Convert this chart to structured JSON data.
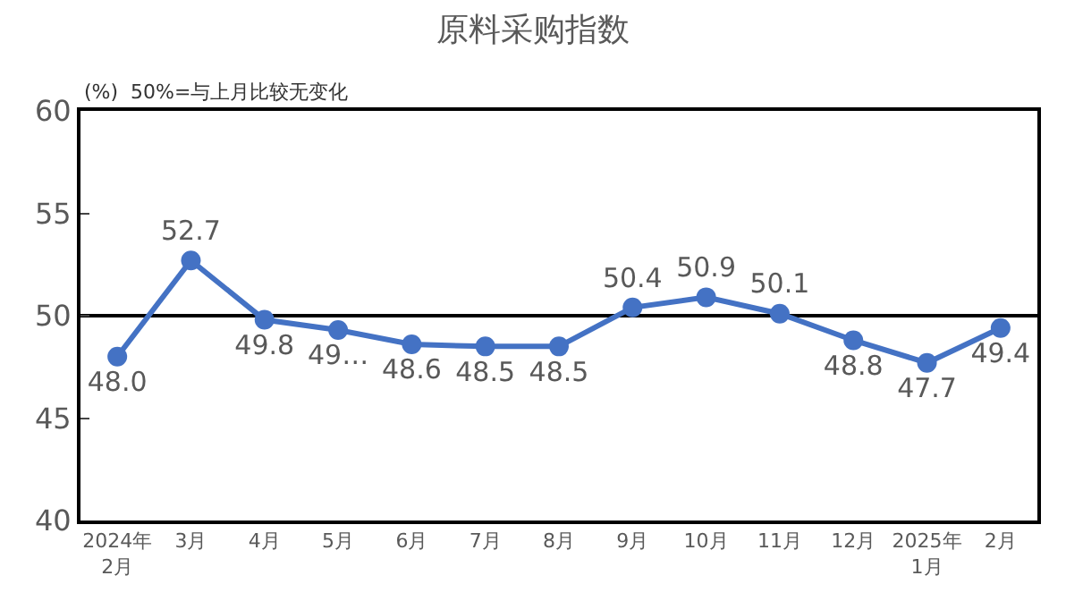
{
  "chart_data": {
    "type": "line",
    "title": "原料采购指数",
    "subtitle": "(%)  50%=与上月比较无变化",
    "categories": [
      "2024年\n2月",
      "3月",
      "4月",
      "5月",
      "6月",
      "7月",
      "8月",
      "9月",
      "10月",
      "11月",
      "12月",
      "2025年\n1月",
      "2月"
    ],
    "series": [
      {
        "color": "#4472c4",
        "values": [
          48.0,
          52.7,
          49.8,
          49.3,
          48.6,
          48.5,
          48.5,
          50.4,
          50.9,
          50.1,
          48.8,
          47.7,
          49.4
        ]
      }
    ],
    "value_labels": [
      "48.0",
      "52.7",
      "49.8",
      "49…",
      "48.6",
      "48.5",
      "48.5",
      "50.4",
      "50.9",
      "50.1",
      "48.8",
      "47.7",
      "49.4"
    ],
    "ylim": [
      40,
      60
    ],
    "yticks": [
      40,
      45,
      50,
      55,
      60
    ],
    "ref_lines": [
      {
        "axis": "y",
        "value": 50,
        "color": "#000000"
      }
    ],
    "grid": false,
    "marker": "circle",
    "line_style": "solid"
  }
}
